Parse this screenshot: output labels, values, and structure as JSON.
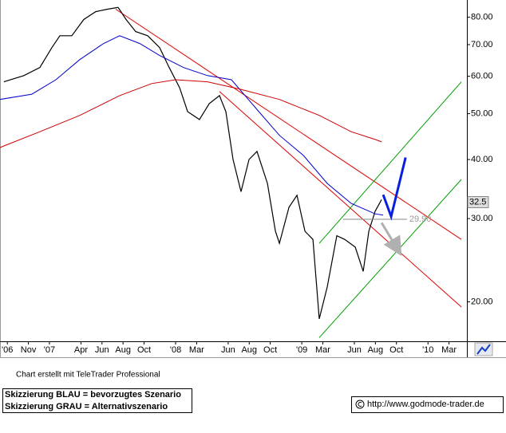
{
  "chart_data": {
    "type": "line",
    "log_scale": true,
    "xlim": [
      -4.7,
      39.7
    ],
    "ylim": [
      16.5,
      87
    ],
    "xticks": [
      {
        "value": -4,
        "label": "'06"
      },
      {
        "value": -2,
        "label": "Nov"
      },
      {
        "value": 0,
        "label": "'07"
      },
      {
        "value": 3,
        "label": "Apr"
      },
      {
        "value": 5,
        "label": "Jun"
      },
      {
        "value": 7,
        "label": "Aug"
      },
      {
        "value": 9,
        "label": "Oct"
      },
      {
        "value": 12,
        "label": "'08"
      },
      {
        "value": 14,
        "label": "Mar"
      },
      {
        "value": 17,
        "label": "Jun"
      },
      {
        "value": 19,
        "label": "Aug"
      },
      {
        "value": 21,
        "label": "Oct"
      },
      {
        "value": 24,
        "label": "'09"
      },
      {
        "value": 26,
        "label": "Mar"
      },
      {
        "value": 29,
        "label": "Jun"
      },
      {
        "value": 31,
        "label": "Aug"
      },
      {
        "value": 33,
        "label": "Oct"
      },
      {
        "value": 36,
        "label": "'10"
      },
      {
        "value": 38,
        "label": "Mar"
      }
    ],
    "yticks": [
      {
        "value": 20,
        "label": "20.00"
      },
      {
        "value": 30,
        "label": "30.00"
      },
      {
        "value": 40,
        "label": "40.00"
      },
      {
        "value": 50,
        "label": "50.00"
      },
      {
        "value": 60,
        "label": "60.00"
      },
      {
        "value": 70,
        "label": "70.00"
      },
      {
        "value": 80,
        "label": "80.00"
      }
    ],
    "series": [
      {
        "color": "#000000",
        "width": 1.2,
        "x": [
          -4.33,
          -2.43,
          -0.91,
          0.23,
          0.99,
          2.13,
          3.26,
          4.4,
          5.54,
          6.53,
          7.29,
          8.2,
          9.34,
          10.48,
          11.39,
          12.38,
          13.14,
          14.27,
          15.19,
          16.17,
          16.78,
          17.46,
          18.22,
          18.98,
          19.74,
          20.73,
          21.49,
          21.87,
          22.78,
          23.54,
          24.3,
          25.06,
          25.66,
          26.42,
          27.33,
          28.09,
          29.08,
          29.84,
          30.37,
          30.98,
          31.59
        ],
        "values": [
          58.4,
          60.2,
          62.6,
          69.0,
          73.1,
          73.1,
          79.1,
          82.2,
          83.2,
          83.9,
          79.1,
          74.6,
          73.1,
          69.0,
          62.6,
          56.8,
          50.5,
          48.6,
          52.5,
          54.6,
          50.5,
          40.0,
          34.2,
          40.0,
          41.6,
          35.6,
          28.2,
          26.6,
          31.7,
          33.6,
          28.2,
          27.1,
          18.4,
          21.5,
          27.6,
          27.1,
          26.1,
          23.2,
          28.2,
          31.1,
          32.9
        ]
      },
      {
        "color": "#0000cc",
        "width": 1,
        "x": [
          -4.71,
          -1.67,
          0.61,
          2.89,
          5.16,
          6.68,
          8.58,
          10.48,
          12.76,
          15.03,
          17.31,
          19.59,
          21.87,
          24.15,
          26.42,
          28.7,
          30.98,
          31.74
        ],
        "values": [
          53.6,
          55.0,
          59.0,
          65.1,
          70.4,
          73.1,
          70.4,
          66.4,
          62.6,
          60.2,
          59.0,
          51.5,
          45.0,
          40.8,
          35.6,
          32.3,
          30.7,
          30.5
        ]
      },
      {
        "color": "#cc0000",
        "width": 1,
        "x": [
          -4.71,
          -0.91,
          2.89,
          6.68,
          9.72,
          12.0,
          15.03,
          18.07,
          21.87,
          25.66,
          28.7,
          30.98,
          31.59
        ],
        "values": [
          42.4,
          45.8,
          49.6,
          54.6,
          57.9,
          59.0,
          58.4,
          56.4,
          53.6,
          49.6,
          45.8,
          44.1,
          43.6
        ]
      }
    ],
    "trendlines": [
      {
        "color": "#e00000",
        "x": [
          6.3,
          39.18
        ],
        "values": [
          83.2,
          27.1
        ]
      },
      {
        "color": "#e00000",
        "x": [
          16.17,
          39.18
        ],
        "values": [
          55.7,
          19.5
        ]
      },
      {
        "color": "#00a000",
        "x": [
          25.66,
          39.18
        ],
        "values": [
          26.6,
          58.4
        ]
      },
      {
        "color": "#00a000",
        "x": [
          25.66,
          39.18
        ],
        "values": [
          16.8,
          36.3
        ]
      }
    ],
    "scenarios": [
      {
        "color": "#0a1ee0",
        "x": [
          31.74,
          32.5,
          33.87
        ],
        "values": [
          33.7,
          30.3,
          40.4
        ]
      },
      {
        "color": "#b0b0b0",
        "x": [
          31.59,
          33.03
        ],
        "values": [
          29.4,
          26.0
        ]
      }
    ],
    "level": {
      "value": 29.9,
      "label": "29.90",
      "x_from": 27.9,
      "x_to": 34.0
    },
    "last_price": 32.5,
    "credit": "Chart erstellt mit TeleTrader Professional",
    "legend_lines": [
      "Skizzierung BLAU = bevorzugtes Szenario",
      "Skizzierung GRAU = Alternativszenario"
    ],
    "source": "http://www.godmode-trader.de"
  }
}
